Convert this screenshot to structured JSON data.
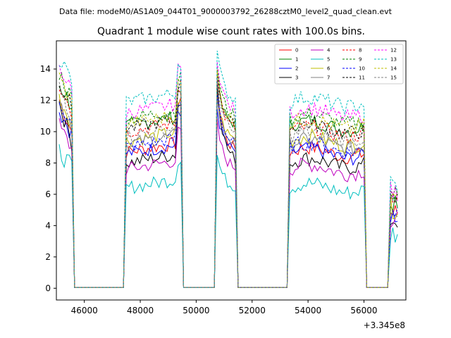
{
  "suptitle": "Data file: modeM0/AS1A09_044T01_9000003792_26288cztM0_level2_quad_clean.evt",
  "chart_data": {
    "type": "line",
    "title": "Quadrant 1 module wise count rates with 100.0s bins.",
    "xlabel": "",
    "ylabel": "",
    "x_offset_label": "+3.345e8",
    "xlim": [
      45000,
      57500
    ],
    "ylim": [
      -0.75,
      15.8
    ],
    "xticks": [
      46000,
      48000,
      50000,
      52000,
      54000,
      56000
    ],
    "xtick_labels": [
      "46000",
      "48000",
      "50000",
      "52000",
      "54000",
      "56000"
    ],
    "yticks": [
      0,
      2,
      4,
      6,
      8,
      10,
      12,
      14
    ],
    "ytick_labels": [
      "0",
      "2",
      "4",
      "6",
      "8",
      "10",
      "12",
      "14"
    ],
    "grid": false,
    "legend_position": "upper right",
    "legend_columns": 4,
    "segments": [
      {
        "start": 45100,
        "end": 45550
      },
      {
        "start": 47500,
        "end": 49450
      },
      {
        "start": 50750,
        "end": 51400
      },
      {
        "start": 53350,
        "end": 56000
      },
      {
        "start": 56950,
        "end": 57200
      }
    ],
    "series": [
      {
        "name": "0",
        "color": "#ff0000",
        "dash": "solid",
        "level": 8.7,
        "peak": 12.8
      },
      {
        "name": "1",
        "color": "#008000",
        "dash": "solid",
        "level": 10.4,
        "peak": 13.0
      },
      {
        "name": "2",
        "color": "#0000ff",
        "dash": "solid",
        "level": 8.6,
        "peak": 11.5
      },
      {
        "name": "3",
        "color": "#000000",
        "dash": "solid",
        "level": 8.0,
        "peak": 13.2
      },
      {
        "name": "4",
        "color": "#bf00bf",
        "dash": "solid",
        "level": 7.6,
        "peak": 10.5
      },
      {
        "name": "5",
        "color": "#00bfbf",
        "dash": "solid",
        "level": 6.4,
        "peak": 8.5
      },
      {
        "name": "6",
        "color": "#bfbf00",
        "dash": "solid",
        "level": 9.4,
        "peak": 12.2
      },
      {
        "name": "7",
        "color": "#808080",
        "dash": "solid",
        "level": 9.2,
        "peak": 12.0
      },
      {
        "name": "8",
        "color": "#ff0000",
        "dash": "dashed",
        "level": 10.0,
        "peak": 13.6
      },
      {
        "name": "9",
        "color": "#008000",
        "dash": "dashed",
        "level": 10.8,
        "peak": 14.2
      },
      {
        "name": "10",
        "color": "#0000ff",
        "dash": "dashed",
        "level": 9.0,
        "peak": 12.6
      },
      {
        "name": "11",
        "color": "#000000",
        "dash": "dashed",
        "level": 10.2,
        "peak": 13.9
      },
      {
        "name": "12",
        "color": "#ff00ff",
        "dash": "dashed",
        "level": 11.2,
        "peak": 14.8
      },
      {
        "name": "13",
        "color": "#00bfbf",
        "dash": "dashed",
        "level": 11.9,
        "peak": 15.1
      },
      {
        "name": "14",
        "color": "#bfbf00",
        "dash": "dashed",
        "level": 10.5,
        "peak": 13.8
      },
      {
        "name": "15",
        "color": "#808080",
        "dash": "dashed",
        "level": 9.7,
        "peak": 13.4
      }
    ]
  }
}
